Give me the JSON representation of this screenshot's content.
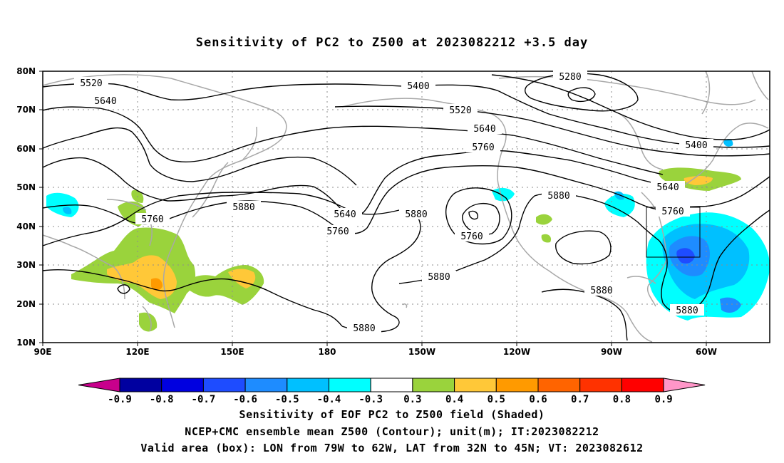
{
  "title": "Sensitivity of PC2 to Z500 at 2023082212 +3.5 day",
  "lat_labels": [
    "80N",
    "70N",
    "60N",
    "50N",
    "40N",
    "30N",
    "20N",
    "10N"
  ],
  "lon_labels": [
    "90E",
    "120E",
    "150E",
    "180",
    "150W",
    "120W",
    "90W",
    "60W"
  ],
  "contour_labels": [
    {
      "text": "5520"
    },
    {
      "text": "5640"
    },
    {
      "text": "5400"
    },
    {
      "text": "5280"
    },
    {
      "text": "5520"
    },
    {
      "text": "5640"
    },
    {
      "text": "5760"
    },
    {
      "text": "5400"
    },
    {
      "text": "5640"
    },
    {
      "text": "5760"
    },
    {
      "text": "5880"
    },
    {
      "text": "5760"
    },
    {
      "text": "5640"
    },
    {
      "text": "5760"
    },
    {
      "text": "5880"
    },
    {
      "text": "5760"
    },
    {
      "text": "5880"
    },
    {
      "text": "5880"
    },
    {
      "text": "5880"
    },
    {
      "text": "5880"
    }
  ],
  "colorbar": {
    "labels": [
      "-0.9",
      "-0.8",
      "-0.7",
      "-0.6",
      "-0.5",
      "-0.4",
      "-0.3",
      "0.3",
      "0.4",
      "0.5",
      "0.6",
      "0.7",
      "0.8",
      "0.9"
    ],
    "colors": [
      "#0000a0",
      "#0000e0",
      "#1e4cff",
      "#1e8cff",
      "#00c0ff",
      "#00ffff",
      "#ffffff",
      "#9ad33c",
      "#ffc838",
      "#ff9a00",
      "#ff6400",
      "#ff3200",
      "#ff0000"
    ],
    "left_end_color": "#c8008c",
    "right_end_color": "#ff96c8"
  },
  "captions": {
    "line1": "Sensitivity of EOF PC2 to Z500 field (Shaded)",
    "line2": "NCEP+CMC ensemble mean Z500 (Contour); unit(m); IT:2023082212",
    "line3": "Valid area (box): LON from 79W to 62W, LAT from 32N to 45N; VT: 2023082612"
  },
  "valid_box": {
    "lon_min": -79,
    "lon_max": -62,
    "lat_min": 32,
    "lat_max": 45
  },
  "colors": {
    "coast": "#a8a8a8",
    "contour": "#000000",
    "grid": "#8c8c8c"
  }
}
